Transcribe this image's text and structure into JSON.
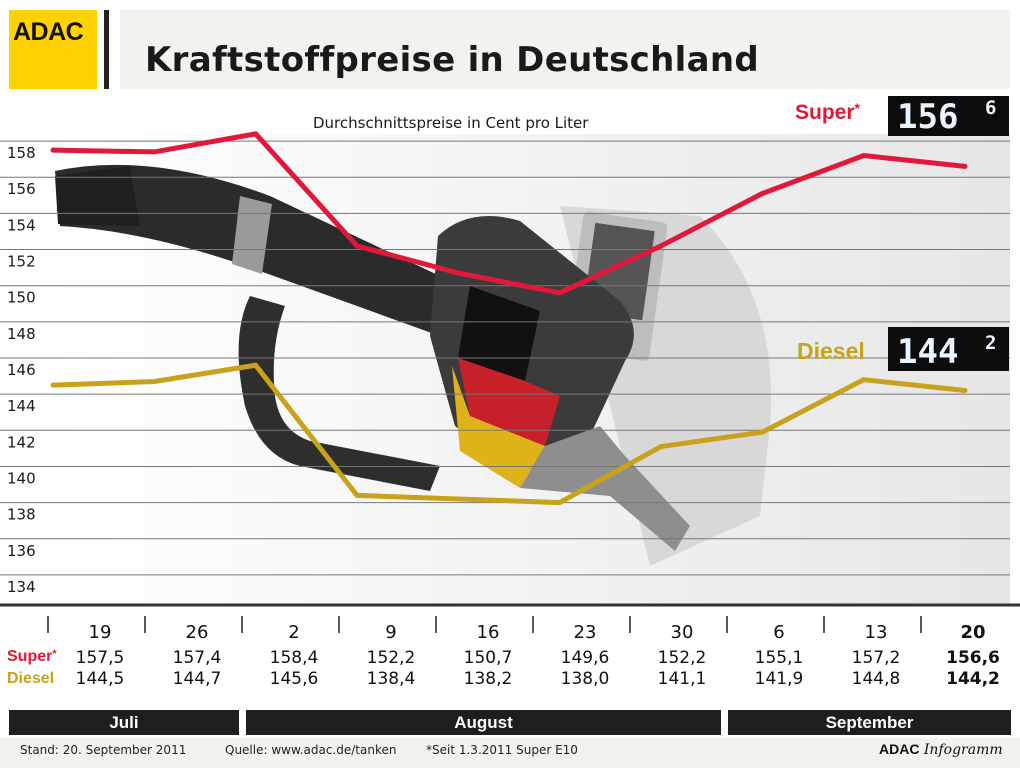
{
  "header": {
    "logo_text": "ADAC",
    "title": "Kraftstoffpreise in Deutschland"
  },
  "chart_data": {
    "type": "line",
    "subtitle": "Durchschnittspreise in Cent pro Liter",
    "x": [
      "19",
      "26",
      "2",
      "9",
      "16",
      "23",
      "30",
      "6",
      "13",
      "20"
    ],
    "ylim": [
      133,
      159
    ],
    "yticks": [
      158,
      156,
      154,
      152,
      150,
      148,
      146,
      144,
      142,
      140,
      138,
      136,
      134
    ],
    "grid": true,
    "series": [
      {
        "name": "Super",
        "marker": "*",
        "color": "#e2183a",
        "values": [
          157.5,
          157.4,
          158.4,
          152.2,
          150.7,
          149.6,
          152.2,
          155.1,
          157.2,
          156.6
        ],
        "labels": [
          "157,5",
          "157,4",
          "158,4",
          "152,2",
          "150,7",
          "149,6",
          "152,2",
          "155,1",
          "157,2",
          "156,6"
        ],
        "display_main": "156",
        "display_sup": "6"
      },
      {
        "name": "Diesel",
        "color": "#c9a21c",
        "values": [
          144.5,
          144.7,
          145.6,
          138.4,
          138.2,
          138.0,
          141.1,
          141.9,
          144.8,
          144.2
        ],
        "labels": [
          "144,5",
          "144,7",
          "145,6",
          "138,4",
          "138,2",
          "138,0",
          "141,1",
          "141,9",
          "144,8",
          "144,2"
        ],
        "display_main": "144",
        "display_sup": "2"
      }
    ],
    "months": [
      {
        "label": "Juli",
        "span": [
          0,
          1
        ]
      },
      {
        "label": "August",
        "span": [
          2,
          6
        ]
      },
      {
        "label": "September",
        "span": [
          7,
          9
        ]
      }
    ]
  },
  "colors": {
    "accent": "#ffd200",
    "super": "#e2183a",
    "diesel": "#c9a21c",
    "dark": "#1e1e1e"
  },
  "footer": {
    "stand": "Stand: 20. September 2011",
    "quelle": "Quelle: www.adac.de/tanken",
    "note": "*Seit 1.3.2011 Super E10",
    "brand_bold": "ADAC",
    "brand_italic": "Infogramm"
  }
}
